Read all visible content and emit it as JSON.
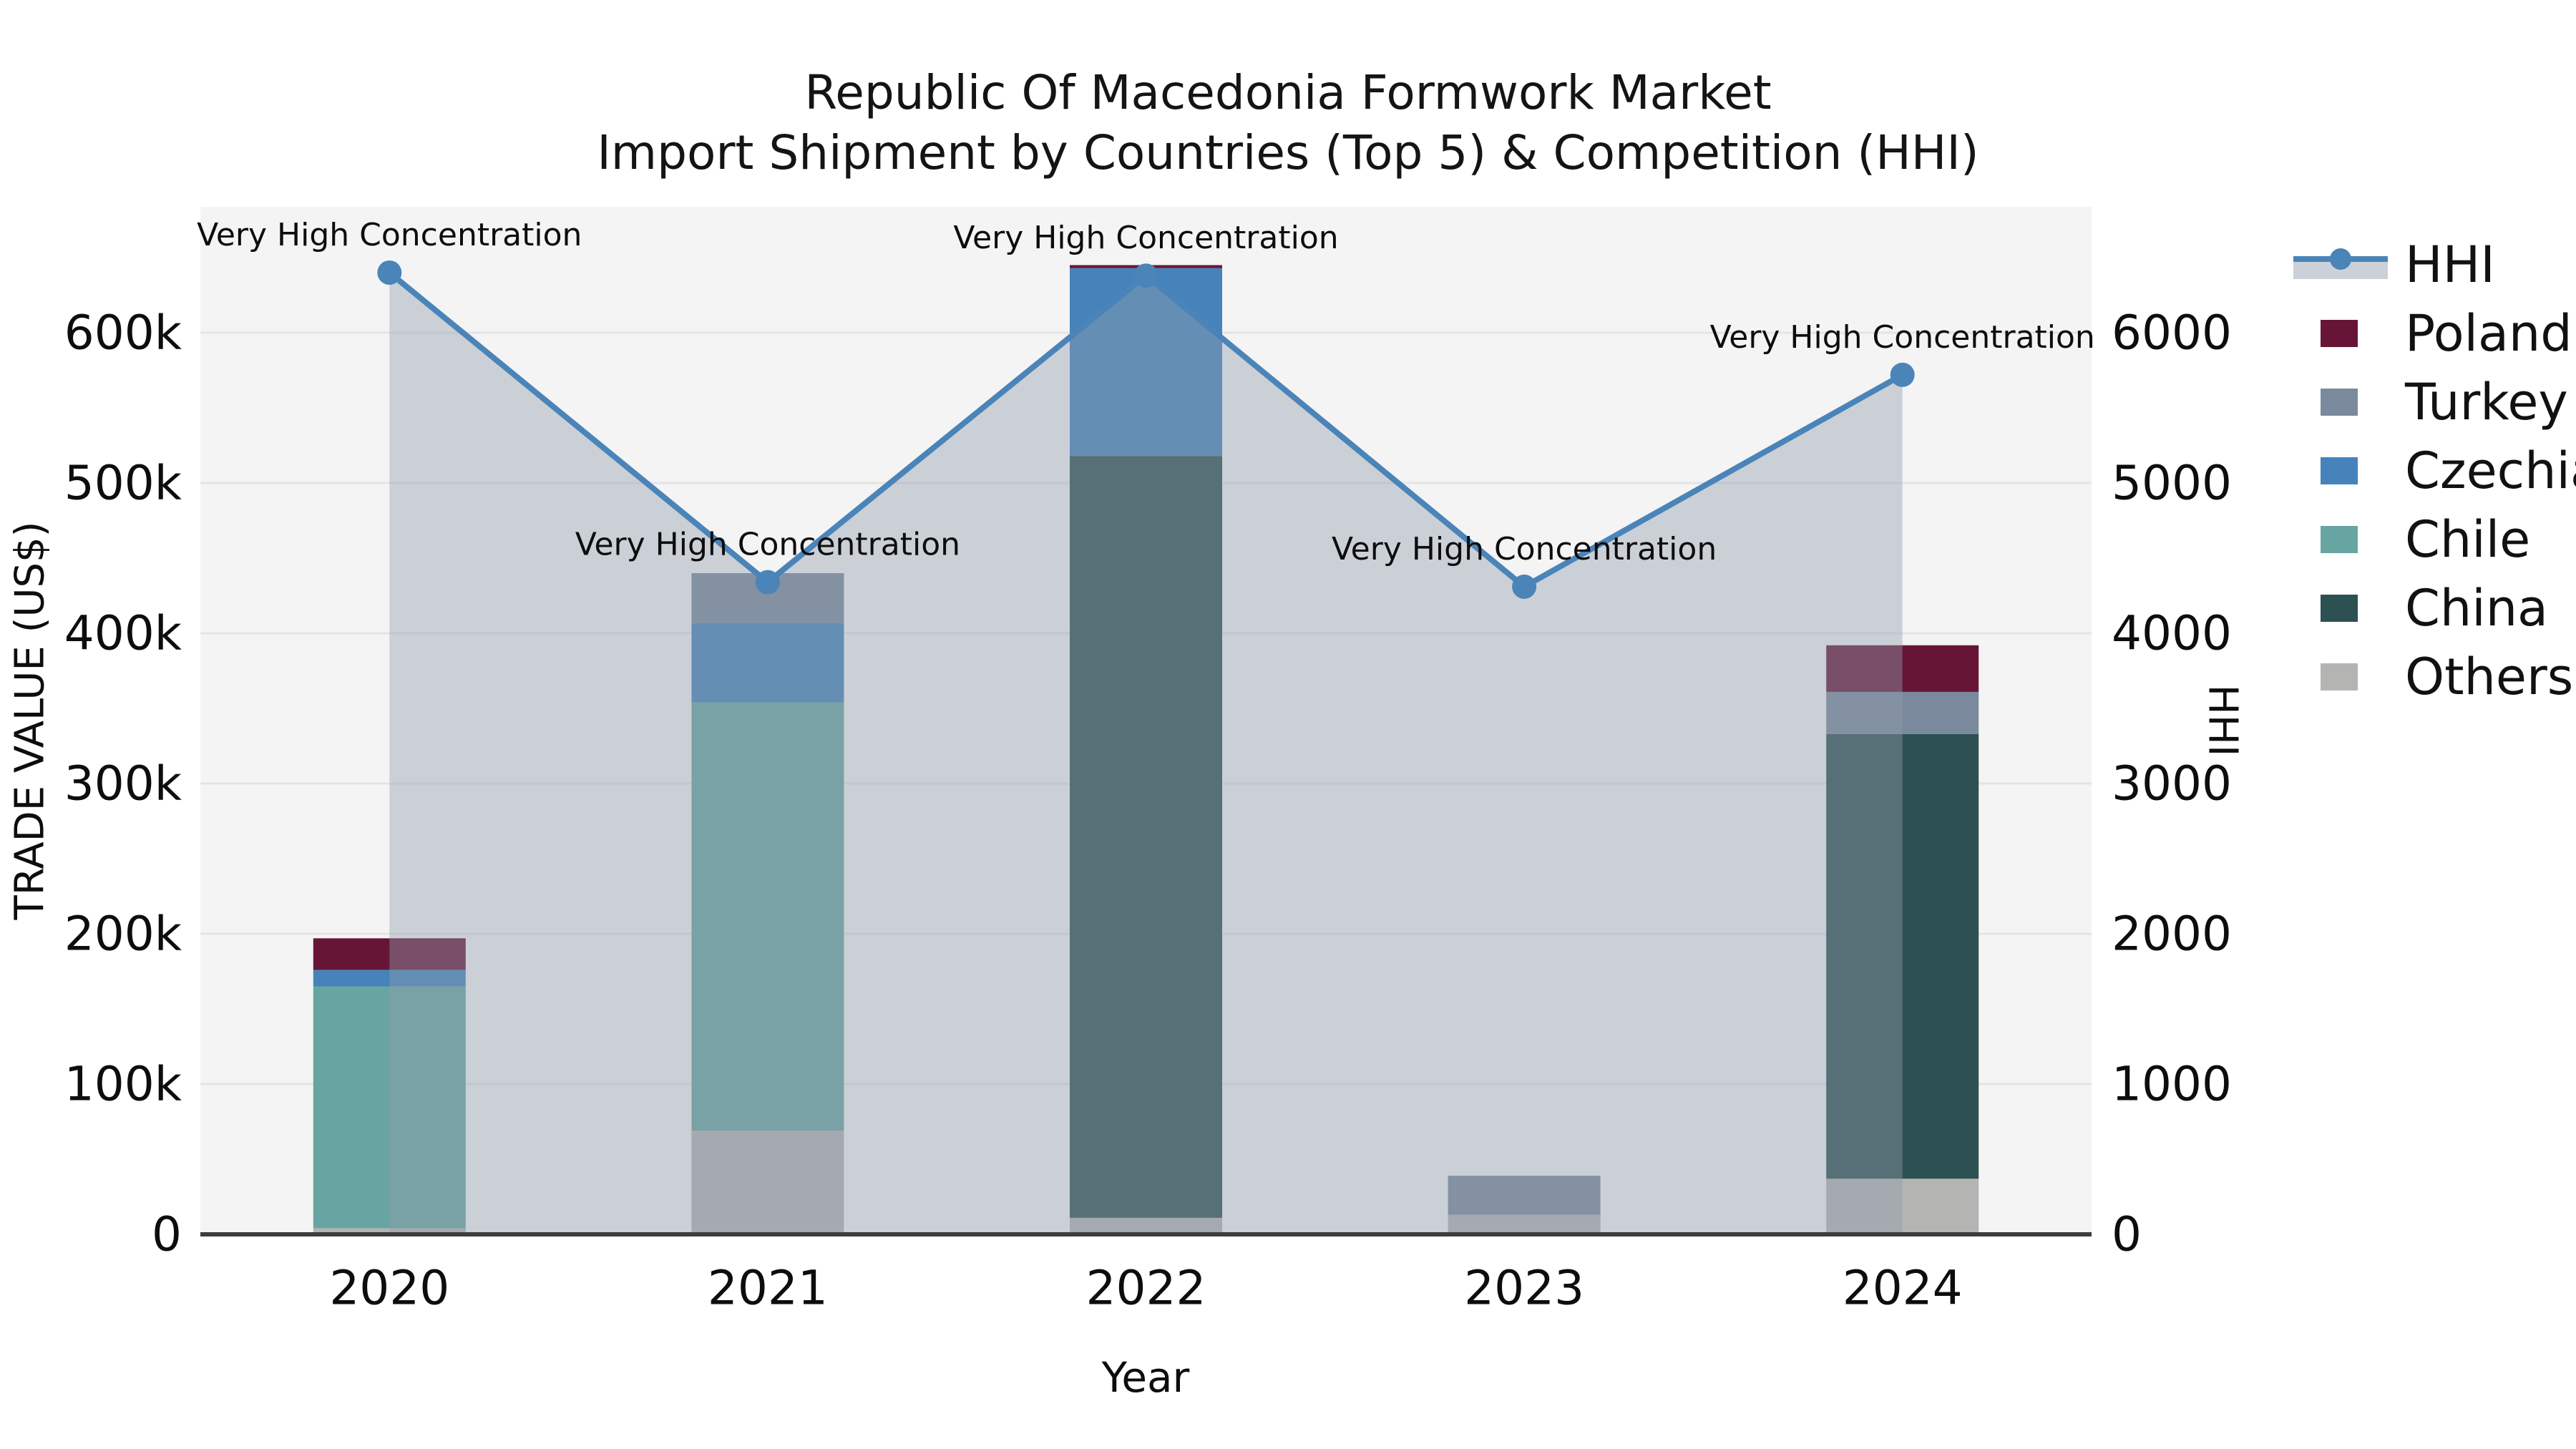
{
  "title": {
    "line1": "Republic Of Macedonia Formwork Market",
    "line2": "Import Shipment by Countries (Top 5) & Competition (HHI)"
  },
  "axes": {
    "x_label": "Year",
    "y_left_label": "TRADE VALUE (US$)",
    "y_right_label": "HHI",
    "y_left_ticks": [
      "0",
      "100k",
      "200k",
      "300k",
      "400k",
      "500k",
      "600k"
    ],
    "y_right_ticks": [
      "0",
      "1000",
      "2000",
      "3000",
      "4000",
      "5000",
      "6000"
    ]
  },
  "chart_data": {
    "type": "bar",
    "combo": "stacked-bar+line",
    "title": "Republic Of Macedonia Formwork Market — Import Shipment by Countries (Top 5) & Competition (HHI)",
    "xlabel": "Year",
    "ylabel_left": "TRADE VALUE (US$)",
    "ylabel_right": "HHI",
    "categories": [
      "2020",
      "2021",
      "2022",
      "2023",
      "2024"
    ],
    "unit_left": "US$ thousands",
    "y_left_range_k": [
      0,
      600
    ],
    "y_right_range": [
      0,
      6000
    ],
    "grid": true,
    "legend_position": "right",
    "series": [
      {
        "name": "Others",
        "color": "#b4b4b2",
        "values_k": [
          4,
          69,
          11,
          13,
          37
        ]
      },
      {
        "name": "China",
        "color": "#2d5052",
        "values_k": [
          0,
          0,
          507,
          0,
          296
        ]
      },
      {
        "name": "Chile",
        "color": "#68a5a2",
        "values_k": [
          161,
          285,
          0,
          0,
          0
        ]
      },
      {
        "name": "Czechia",
        "color": "#4583ba",
        "values_k": [
          11,
          53,
          125,
          0,
          0
        ]
      },
      {
        "name": "Turkey",
        "color": "#7b899c",
        "values_k": [
          0,
          33,
          0,
          26,
          28
        ]
      },
      {
        "name": "Poland",
        "color": "#671537",
        "values_k": [
          21,
          0,
          2,
          0,
          31
        ]
      }
    ],
    "totals_k": [
      197,
      440,
      645,
      39,
      392
    ],
    "hhi_line": {
      "name": "HHI",
      "color": "#4a84b8",
      "area_fill": "rgba(145,157,173,0.42)",
      "values": [
        6400,
        4340,
        6380,
        4310,
        5720
      ]
    },
    "annotations": [
      "Very High Concentration",
      "Very High Concentration",
      "Very High Concentration",
      "Very High Concentration",
      "Very High Concentration"
    ]
  },
  "legend": {
    "items": [
      {
        "label": "HHI",
        "type": "line",
        "color": "#4a84b8",
        "band": "#ccd1d9"
      },
      {
        "label": "Poland",
        "type": "swatch",
        "color": "#671537"
      },
      {
        "label": "Turkey",
        "type": "swatch",
        "color": "#7b899c"
      },
      {
        "label": "Czechia",
        "type": "swatch",
        "color": "#4583ba"
      },
      {
        "label": "Chile",
        "type": "swatch",
        "color": "#68a5a2"
      },
      {
        "label": "China",
        "type": "swatch",
        "color": "#2d5052"
      },
      {
        "label": "Others",
        "type": "swatch",
        "color": "#b4b4b2"
      }
    ]
  },
  "colors": {
    "plot_background": "#f4f4f5",
    "gridline": "#e4e4e7",
    "axis_line": "#3d3d3d",
    "hhi_line": "#4a84b8"
  }
}
